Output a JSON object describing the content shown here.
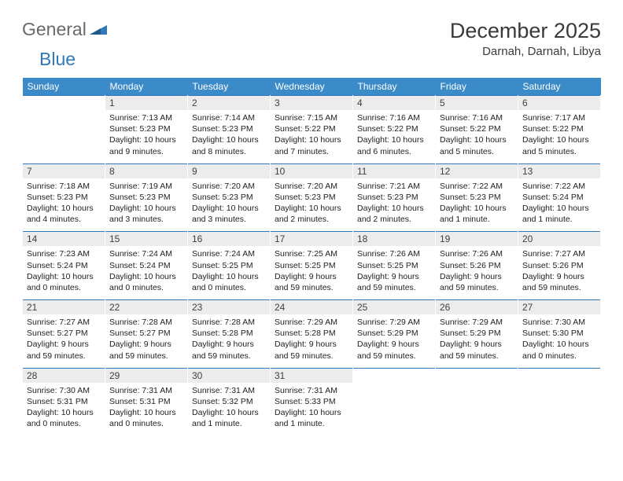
{
  "logo": {
    "text1": "General",
    "text2": "Blue"
  },
  "title": "December 2025",
  "location": "Darnah, Darnah, Libya",
  "colors": {
    "header_bg": "#3b8bc9",
    "header_text": "#ffffff",
    "daynum_bg": "#ececec",
    "row_border": "#2f78b9",
    "logo_gray": "#6a6a6a",
    "logo_blue": "#2f78b9"
  },
  "weekdays": [
    "Sunday",
    "Monday",
    "Tuesday",
    "Wednesday",
    "Thursday",
    "Friday",
    "Saturday"
  ],
  "days": [
    {
      "n": "",
      "sunrise": "",
      "sunset": "",
      "daylight": ""
    },
    {
      "n": "1",
      "sunrise": "7:13 AM",
      "sunset": "5:23 PM",
      "daylight": "10 hours and 9 minutes."
    },
    {
      "n": "2",
      "sunrise": "7:14 AM",
      "sunset": "5:23 PM",
      "daylight": "10 hours and 8 minutes."
    },
    {
      "n": "3",
      "sunrise": "7:15 AM",
      "sunset": "5:22 PM",
      "daylight": "10 hours and 7 minutes."
    },
    {
      "n": "4",
      "sunrise": "7:16 AM",
      "sunset": "5:22 PM",
      "daylight": "10 hours and 6 minutes."
    },
    {
      "n": "5",
      "sunrise": "7:16 AM",
      "sunset": "5:22 PM",
      "daylight": "10 hours and 5 minutes."
    },
    {
      "n": "6",
      "sunrise": "7:17 AM",
      "sunset": "5:22 PM",
      "daylight": "10 hours and 5 minutes."
    },
    {
      "n": "7",
      "sunrise": "7:18 AM",
      "sunset": "5:23 PM",
      "daylight": "10 hours and 4 minutes."
    },
    {
      "n": "8",
      "sunrise": "7:19 AM",
      "sunset": "5:23 PM",
      "daylight": "10 hours and 3 minutes."
    },
    {
      "n": "9",
      "sunrise": "7:20 AM",
      "sunset": "5:23 PM",
      "daylight": "10 hours and 3 minutes."
    },
    {
      "n": "10",
      "sunrise": "7:20 AM",
      "sunset": "5:23 PM",
      "daylight": "10 hours and 2 minutes."
    },
    {
      "n": "11",
      "sunrise": "7:21 AM",
      "sunset": "5:23 PM",
      "daylight": "10 hours and 2 minutes."
    },
    {
      "n": "12",
      "sunrise": "7:22 AM",
      "sunset": "5:23 PM",
      "daylight": "10 hours and 1 minute."
    },
    {
      "n": "13",
      "sunrise": "7:22 AM",
      "sunset": "5:24 PM",
      "daylight": "10 hours and 1 minute."
    },
    {
      "n": "14",
      "sunrise": "7:23 AM",
      "sunset": "5:24 PM",
      "daylight": "10 hours and 0 minutes."
    },
    {
      "n": "15",
      "sunrise": "7:24 AM",
      "sunset": "5:24 PM",
      "daylight": "10 hours and 0 minutes."
    },
    {
      "n": "16",
      "sunrise": "7:24 AM",
      "sunset": "5:25 PM",
      "daylight": "10 hours and 0 minutes."
    },
    {
      "n": "17",
      "sunrise": "7:25 AM",
      "sunset": "5:25 PM",
      "daylight": "9 hours and 59 minutes."
    },
    {
      "n": "18",
      "sunrise": "7:26 AM",
      "sunset": "5:25 PM",
      "daylight": "9 hours and 59 minutes."
    },
    {
      "n": "19",
      "sunrise": "7:26 AM",
      "sunset": "5:26 PM",
      "daylight": "9 hours and 59 minutes."
    },
    {
      "n": "20",
      "sunrise": "7:27 AM",
      "sunset": "5:26 PM",
      "daylight": "9 hours and 59 minutes."
    },
    {
      "n": "21",
      "sunrise": "7:27 AM",
      "sunset": "5:27 PM",
      "daylight": "9 hours and 59 minutes."
    },
    {
      "n": "22",
      "sunrise": "7:28 AM",
      "sunset": "5:27 PM",
      "daylight": "9 hours and 59 minutes."
    },
    {
      "n": "23",
      "sunrise": "7:28 AM",
      "sunset": "5:28 PM",
      "daylight": "9 hours and 59 minutes."
    },
    {
      "n": "24",
      "sunrise": "7:29 AM",
      "sunset": "5:28 PM",
      "daylight": "9 hours and 59 minutes."
    },
    {
      "n": "25",
      "sunrise": "7:29 AM",
      "sunset": "5:29 PM",
      "daylight": "9 hours and 59 minutes."
    },
    {
      "n": "26",
      "sunrise": "7:29 AM",
      "sunset": "5:29 PM",
      "daylight": "9 hours and 59 minutes."
    },
    {
      "n": "27",
      "sunrise": "7:30 AM",
      "sunset": "5:30 PM",
      "daylight": "10 hours and 0 minutes."
    },
    {
      "n": "28",
      "sunrise": "7:30 AM",
      "sunset": "5:31 PM",
      "daylight": "10 hours and 0 minutes."
    },
    {
      "n": "29",
      "sunrise": "7:31 AM",
      "sunset": "5:31 PM",
      "daylight": "10 hours and 0 minutes."
    },
    {
      "n": "30",
      "sunrise": "7:31 AM",
      "sunset": "5:32 PM",
      "daylight": "10 hours and 1 minute."
    },
    {
      "n": "31",
      "sunrise": "7:31 AM",
      "sunset": "5:33 PM",
      "daylight": "10 hours and 1 minute."
    },
    {
      "n": "",
      "sunrise": "",
      "sunset": "",
      "daylight": ""
    },
    {
      "n": "",
      "sunrise": "",
      "sunset": "",
      "daylight": ""
    },
    {
      "n": "",
      "sunrise": "",
      "sunset": "",
      "daylight": ""
    }
  ],
  "labels": {
    "sunrise": "Sunrise:",
    "sunset": "Sunset:",
    "daylight": "Daylight:"
  }
}
